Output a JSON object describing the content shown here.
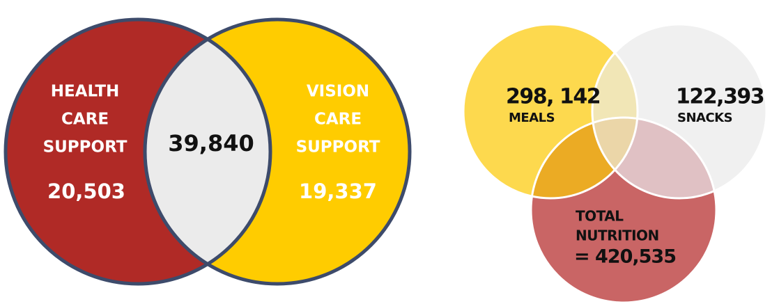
{
  "left_venn": {
    "left": {
      "label": [
        "HEALTH",
        "CARE",
        "SUPPORT"
      ],
      "value": "20,503"
    },
    "overlap": "39,840",
    "right": {
      "label": [
        "VISION",
        "CARE",
        "SUPPORT"
      ],
      "value": "19,337"
    }
  },
  "right_venn": {
    "meals": {
      "value": "298, 142",
      "label": "MEALS"
    },
    "snacks": {
      "value": "122,393",
      "label": "SNACKS"
    },
    "total": {
      "label": [
        "TOTAL",
        "NUTRITION"
      ],
      "value": "= 420,535"
    }
  }
}
